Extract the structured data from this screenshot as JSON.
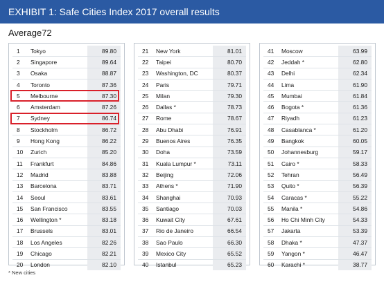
{
  "header": {
    "title": "EXHIBIT 1: Safe Cities Index 2017 overall results"
  },
  "summary": {
    "average_label": "Average",
    "average_value": "72"
  },
  "footnote": "* New cities",
  "colors": {
    "banner": "#2b5aa3",
    "highlight_box": "#d9202a",
    "score_background": "#eaecef"
  },
  "chart_data": {
    "type": "table",
    "title": "EXHIBIT 1: Safe Cities Index 2017 overall results",
    "average": 72,
    "highlighted_ranks": [
      5,
      7
    ],
    "columns": [
      {
        "rows": [
          {
            "rank": "1",
            "city": "Tokyo",
            "score": "89.80"
          },
          {
            "rank": "2",
            "city": "Singapore",
            "score": "89.64"
          },
          {
            "rank": "3",
            "city": "Osaka",
            "score": "88.87"
          },
          {
            "rank": "4",
            "city": "Toronto",
            "score": "87.36"
          },
          {
            "rank": "5",
            "city": "Melbourne",
            "score": "87.30"
          },
          {
            "rank": "6",
            "city": "Amsterdam",
            "score": "87.26"
          },
          {
            "rank": "7",
            "city": "Sydney",
            "score": "86.74"
          },
          {
            "rank": "8",
            "city": "Stockholm",
            "score": "86.72"
          },
          {
            "rank": "9",
            "city": "Hong Kong",
            "score": "86.22"
          },
          {
            "rank": "10",
            "city": "Zurich",
            "score": "85.20"
          },
          {
            "rank": "11",
            "city": "Frankfurt",
            "score": "84.86"
          },
          {
            "rank": "12",
            "city": "Madrid",
            "score": "83.88"
          },
          {
            "rank": "13",
            "city": "Barcelona",
            "score": "83.71"
          },
          {
            "rank": "14",
            "city": "Seoul",
            "score": "83.61"
          },
          {
            "rank": "15",
            "city": "San Francisco",
            "score": "83.55"
          },
          {
            "rank": "16",
            "city": "Wellington *",
            "score": "83.18"
          },
          {
            "rank": "17",
            "city": "Brussels",
            "score": "83.01"
          },
          {
            "rank": "18",
            "city": "Los Angeles",
            "score": "82.26"
          },
          {
            "rank": "19",
            "city": "Chicago",
            "score": "82.21"
          },
          {
            "rank": "20",
            "city": "London",
            "score": "82.10"
          }
        ]
      },
      {
        "rows": [
          {
            "rank": "21",
            "city": "New York",
            "score": "81.01"
          },
          {
            "rank": "22",
            "city": "Taipei",
            "score": "80.70"
          },
          {
            "rank": "23",
            "city": "Washington, DC",
            "score": "80.37"
          },
          {
            "rank": "24",
            "city": "Paris",
            "score": "79.71"
          },
          {
            "rank": "25",
            "city": "Milan",
            "score": "79.30"
          },
          {
            "rank": "26",
            "city": "Dallas *",
            "score": "78.73"
          },
          {
            "rank": "27",
            "city": "Rome",
            "score": "78.67"
          },
          {
            "rank": "28",
            "city": "Abu Dhabi",
            "score": "76.91"
          },
          {
            "rank": "29",
            "city": "Buenos Aires",
            "score": "76.35"
          },
          {
            "rank": "30",
            "city": "Doha",
            "score": "73.59"
          },
          {
            "rank": "31",
            "city": "Kuala Lumpur *",
            "score": "73.11"
          },
          {
            "rank": "32",
            "city": "Beijing",
            "score": "72.06"
          },
          {
            "rank": "33",
            "city": "Athens *",
            "score": "71.90"
          },
          {
            "rank": "34",
            "city": "Shanghai",
            "score": "70.93"
          },
          {
            "rank": "35",
            "city": "Santiago",
            "score": "70.03"
          },
          {
            "rank": "36",
            "city": "Kuwait City",
            "score": "67.61"
          },
          {
            "rank": "37",
            "city": "Rio de Janeiro",
            "score": "66.54"
          },
          {
            "rank": "38",
            "city": "Sao Paulo",
            "score": "66.30"
          },
          {
            "rank": "39",
            "city": "Mexico City",
            "score": "65.52"
          },
          {
            "rank": "40",
            "city": "Istanbul",
            "score": "65.23"
          }
        ]
      },
      {
        "rows": [
          {
            "rank": "41",
            "city": "Moscow",
            "score": "63.99"
          },
          {
            "rank": "42",
            "city": "Jeddah *",
            "score": "62.80"
          },
          {
            "rank": "43",
            "city": "Delhi",
            "score": "62.34"
          },
          {
            "rank": "44",
            "city": "Lima",
            "score": "61.90"
          },
          {
            "rank": "45",
            "city": "Mumbai",
            "score": "61.84"
          },
          {
            "rank": "46",
            "city": "Bogota *",
            "score": "61.36"
          },
          {
            "rank": "47",
            "city": "Riyadh",
            "score": "61.23"
          },
          {
            "rank": "48",
            "city": "Casablanca *",
            "score": "61.20"
          },
          {
            "rank": "49",
            "city": "Bangkok",
            "score": "60.05"
          },
          {
            "rank": "50",
            "city": "Johannesburg",
            "score": "59.17"
          },
          {
            "rank": "51",
            "city": "Cairo *",
            "score": "58.33"
          },
          {
            "rank": "52",
            "city": "Tehran",
            "score": "56.49"
          },
          {
            "rank": "53",
            "city": "Quito *",
            "score": "56.39"
          },
          {
            "rank": "54",
            "city": "Caracas *",
            "score": "55.22"
          },
          {
            "rank": "55",
            "city": "Manila *",
            "score": "54.86"
          },
          {
            "rank": "56",
            "city": "Ho Chi Minh City",
            "score": "54.33"
          },
          {
            "rank": "57",
            "city": "Jakarta",
            "score": "53.39"
          },
          {
            "rank": "58",
            "city": "Dhaka *",
            "score": "47.37"
          },
          {
            "rank": "59",
            "city": "Yangon *",
            "score": "46.47"
          },
          {
            "rank": "60",
            "city": "Karachi *",
            "score": "38.77"
          }
        ]
      }
    ]
  }
}
